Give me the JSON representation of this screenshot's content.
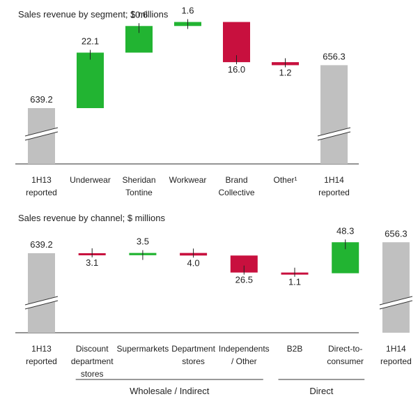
{
  "colors": {
    "increase": "#22b432",
    "decrease": "#c8103e",
    "total": "#c0c0c0",
    "axis": "#555555"
  },
  "chart_data": [
    {
      "type": "bar",
      "subtype": "waterfall",
      "title": "Sales revenue by segment; $ millions",
      "axis_break": true,
      "steps": [
        {
          "label": [
            "1H13",
            "reported"
          ],
          "value": 639.2,
          "kind": "total",
          "display": "639.2"
        },
        {
          "label": [
            "Underwear"
          ],
          "value": 22.1,
          "kind": "increase",
          "display": "22.1"
        },
        {
          "label": [
            "Sheridan",
            "Tontine"
          ],
          "value": 10.6,
          "kind": "increase",
          "display": "10.6"
        },
        {
          "label": [
            "Workwear"
          ],
          "value": 1.6,
          "kind": "increase",
          "display": "1.6"
        },
        {
          "label": [
            "Brand",
            "Collective"
          ],
          "value": -16.0,
          "kind": "decrease",
          "display": "16.0"
        },
        {
          "label": [
            "Other¹"
          ],
          "value": -1.2,
          "kind": "decrease",
          "display": "1.2"
        },
        {
          "label": [
            "1H14",
            "reported"
          ],
          "value": 656.3,
          "kind": "total",
          "display": "656.3"
        }
      ],
      "groups": []
    },
    {
      "type": "bar",
      "subtype": "waterfall",
      "title": "Sales revenue by channel; $ millions",
      "axis_break": true,
      "steps": [
        {
          "label": [
            "1H13",
            "reported"
          ],
          "value": 639.2,
          "kind": "total",
          "display": "639.2"
        },
        {
          "label": [
            "Discount",
            "department",
            "stores"
          ],
          "value": -3.1,
          "kind": "decrease",
          "display": "3.1"
        },
        {
          "label": [
            "Supermarkets"
          ],
          "value": 3.5,
          "kind": "increase",
          "display": "3.5"
        },
        {
          "label": [
            "Department",
            "stores"
          ],
          "value": -4.0,
          "kind": "decrease",
          "display": "4.0"
        },
        {
          "label": [
            "Independents",
            "/ Other"
          ],
          "value": -26.5,
          "kind": "decrease",
          "display": "26.5"
        },
        {
          "label": [
            "B2B"
          ],
          "value": -1.1,
          "kind": "decrease",
          "display": "1.1"
        },
        {
          "label": [
            "Direct-to-",
            "consumer"
          ],
          "value": 48.3,
          "kind": "increase",
          "display": "48.3"
        },
        {
          "label": [
            "1H14",
            "reported"
          ],
          "value": 656.3,
          "kind": "total",
          "display": "656.3"
        }
      ],
      "groups": [
        {
          "label": "Wholesale / Indirect",
          "from": 1,
          "to": 4
        },
        {
          "label": "Direct",
          "from": 5,
          "to": 6
        }
      ]
    }
  ]
}
